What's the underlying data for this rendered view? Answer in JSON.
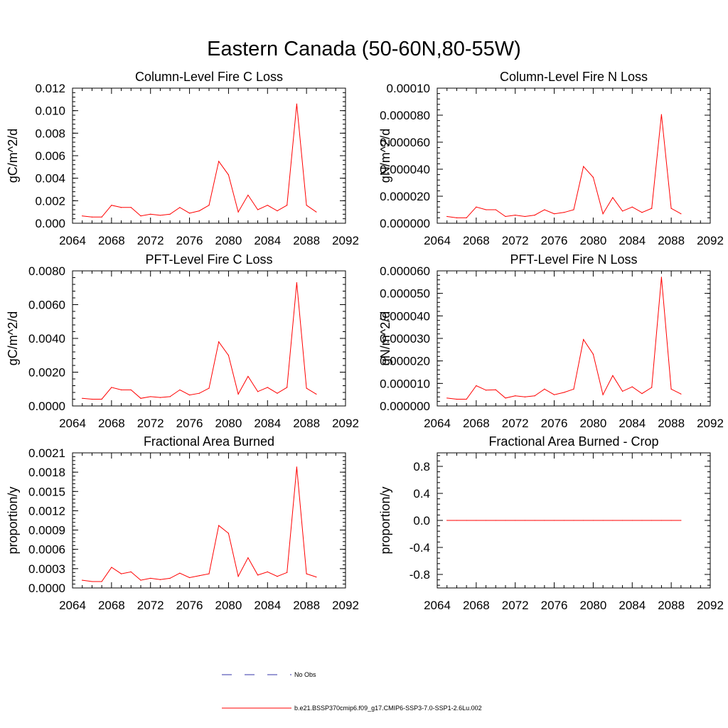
{
  "title": "Eastern Canada (50-60N,80-55W)",
  "series_color": "#ff0000",
  "obs_color": "#3333aa",
  "legend": {
    "entries": [
      {
        "label": "No Obs",
        "style": "dashed",
        "color": "#3333aa"
      },
      {
        "label": "b.e21.BSSP370cmip6.f09_g17.CMIP6-SSP3-7.0-SSP1-2.6Lu.002",
        "style": "solid",
        "color": "#ff0000"
      }
    ]
  },
  "chart_data": [
    {
      "type": "line",
      "title": "Column-Level Fire C Loss",
      "ylabel": "gC/m^2/d",
      "xlim": [
        2064,
        2092
      ],
      "x_ticks": [
        "2064",
        "2068",
        "2072",
        "2076",
        "2080",
        "2084",
        "2088",
        "2092"
      ],
      "ylim": [
        0,
        0.012
      ],
      "y_ticks": [
        "0.000",
        "0.002",
        "0.004",
        "0.006",
        "0.008",
        "0.010",
        "0.012"
      ],
      "x": [
        2065,
        2066,
        2067,
        2068,
        2069,
        2070,
        2071,
        2072,
        2073,
        2074,
        2075,
        2076,
        2077,
        2078,
        2079,
        2080,
        2081,
        2082,
        2083,
        2084,
        2085,
        2086,
        2087,
        2088,
        2089
      ],
      "values": [
        0.00065,
        0.00055,
        0.00055,
        0.0016,
        0.0014,
        0.0014,
        0.00065,
        0.0008,
        0.0007,
        0.0008,
        0.0014,
        0.0009,
        0.0011,
        0.0016,
        0.0055,
        0.0043,
        0.001,
        0.0025,
        0.0012,
        0.0016,
        0.0011,
        0.0016,
        0.0106,
        0.0016,
        0.001
      ]
    },
    {
      "type": "line",
      "title": "Column-Level Fire N Loss",
      "ylabel": "gN/m^2/d",
      "xlim": [
        2064,
        2092
      ],
      "x_ticks": [
        "2064",
        "2068",
        "2072",
        "2076",
        "2080",
        "2084",
        "2088",
        "2092"
      ],
      "ylim": [
        0,
        0.0001
      ],
      "y_ticks": [
        "0.000000",
        "0.000020",
        "0.000040",
        "0.000060",
        "0.000080",
        "0.00010"
      ],
      "x": [
        2065,
        2066,
        2067,
        2068,
        2069,
        2070,
        2071,
        2072,
        2073,
        2074,
        2075,
        2076,
        2077,
        2078,
        2079,
        2080,
        2081,
        2082,
        2083,
        2084,
        2085,
        2086,
        2087,
        2088,
        2089
      ],
      "values": [
        5e-06,
        4e-06,
        4e-06,
        1.2e-05,
        1e-05,
        1e-05,
        5e-06,
        6e-06,
        5e-06,
        6e-06,
        1e-05,
        7e-06,
        8e-06,
        1e-05,
        4.2e-05,
        3.4e-05,
        7e-06,
        1.9e-05,
        9e-06,
        1.2e-05,
        8e-06,
        1.1e-05,
        8.05e-05,
        1.1e-05,
        7e-06
      ]
    },
    {
      "type": "line",
      "title": "PFT-Level Fire C Loss",
      "ylabel": "gC/m^2/d",
      "xlim": [
        2064,
        2092
      ],
      "x_ticks": [
        "2064",
        "2068",
        "2072",
        "2076",
        "2080",
        "2084",
        "2088",
        "2092"
      ],
      "ylim": [
        0,
        0.008
      ],
      "y_ticks": [
        "0.0000",
        "0.0020",
        "0.0040",
        "0.0060",
        "0.0080"
      ],
      "x": [
        2065,
        2066,
        2067,
        2068,
        2069,
        2070,
        2071,
        2072,
        2073,
        2074,
        2075,
        2076,
        2077,
        2078,
        2079,
        2080,
        2081,
        2082,
        2083,
        2084,
        2085,
        2086,
        2087,
        2088,
        2089
      ],
      "values": [
        0.00045,
        0.0004,
        0.0004,
        0.0011,
        0.00095,
        0.00095,
        0.00045,
        0.00055,
        0.0005,
        0.00055,
        0.00095,
        0.00065,
        0.00075,
        0.00105,
        0.0038,
        0.003,
        0.0007,
        0.00175,
        0.00085,
        0.0011,
        0.00075,
        0.0011,
        0.0073,
        0.00105,
        0.0007
      ]
    },
    {
      "type": "line",
      "title": "PFT-Level Fire N Loss",
      "ylabel": "gN/m^2/d",
      "xlim": [
        2064,
        2092
      ],
      "x_ticks": [
        "2064",
        "2068",
        "2072",
        "2076",
        "2080",
        "2084",
        "2088",
        "2092"
      ],
      "ylim": [
        0,
        6e-05
      ],
      "y_ticks": [
        "0.000000",
        "0.000010",
        "0.000020",
        "0.000030",
        "0.000040",
        "0.000050",
        "0.000060"
      ],
      "x": [
        2065,
        2066,
        2067,
        2068,
        2069,
        2070,
        2071,
        2072,
        2073,
        2074,
        2075,
        2076,
        2077,
        2078,
        2079,
        2080,
        2081,
        2082,
        2083,
        2084,
        2085,
        2086,
        2087,
        2088,
        2089
      ],
      "values": [
        3.5e-06,
        3e-06,
        3e-06,
        9e-06,
        7e-06,
        7.2e-06,
        3.5e-06,
        4.5e-06,
        4e-06,
        4.5e-06,
        7.5e-06,
        5e-06,
        6e-06,
        7.5e-06,
        2.95e-05,
        2.3e-05,
        5e-06,
        1.35e-05,
        6.5e-06,
        8.5e-06,
        5.5e-06,
        8.2e-06,
        5.72e-05,
        7.5e-06,
        5.3e-06
      ]
    },
    {
      "type": "line",
      "title": "Fractional Area Burned",
      "ylabel": "proportion/y",
      "xlim": [
        2064,
        2092
      ],
      "x_ticks": [
        "2064",
        "2068",
        "2072",
        "2076",
        "2080",
        "2084",
        "2088",
        "2092"
      ],
      "ylim": [
        0,
        0.0021
      ],
      "y_ticks": [
        "0.0000",
        "0.0003",
        "0.0006",
        "0.0009",
        "0.0012",
        "0.0015",
        "0.0018",
        "0.0021"
      ],
      "x": [
        2065,
        2066,
        2067,
        2068,
        2069,
        2070,
        2071,
        2072,
        2073,
        2074,
        2075,
        2076,
        2077,
        2078,
        2079,
        2080,
        2081,
        2082,
        2083,
        2084,
        2085,
        2086,
        2087,
        2088,
        2089
      ],
      "values": [
        0.00012,
        0.0001,
        0.0001,
        0.00032,
        0.00022,
        0.00025,
        0.00012,
        0.00015,
        0.00013,
        0.00015,
        0.00023,
        0.00016,
        0.00019,
        0.00022,
        0.00097,
        0.00085,
        0.00018,
        0.00047,
        0.0002,
        0.00025,
        0.00018,
        0.00024,
        0.00188,
        0.00022,
        0.00017
      ]
    },
    {
      "type": "line",
      "title": "Fractional Area Burned - Crop",
      "ylabel": "proportion/y",
      "xlim": [
        2064,
        2092
      ],
      "x_ticks": [
        "2064",
        "2068",
        "2072",
        "2076",
        "2080",
        "2084",
        "2088",
        "2092"
      ],
      "ylim": [
        -1,
        1
      ],
      "y_ticks": [
        "-0.8",
        "-0.4",
        "0.0",
        "0.4",
        "0.8"
      ],
      "y_tick_values": [
        -0.8,
        -0.4,
        0,
        0.4,
        0.8
      ],
      "x": [
        2065,
        2066,
        2067,
        2068,
        2069,
        2070,
        2071,
        2072,
        2073,
        2074,
        2075,
        2076,
        2077,
        2078,
        2079,
        2080,
        2081,
        2082,
        2083,
        2084,
        2085,
        2086,
        2087,
        2088,
        2089
      ],
      "values": [
        0,
        0,
        0,
        0,
        0,
        0,
        0,
        0,
        0,
        0,
        0,
        0,
        0,
        0,
        0,
        0,
        0,
        0,
        0,
        0,
        0,
        0,
        0,
        0,
        0
      ]
    }
  ]
}
